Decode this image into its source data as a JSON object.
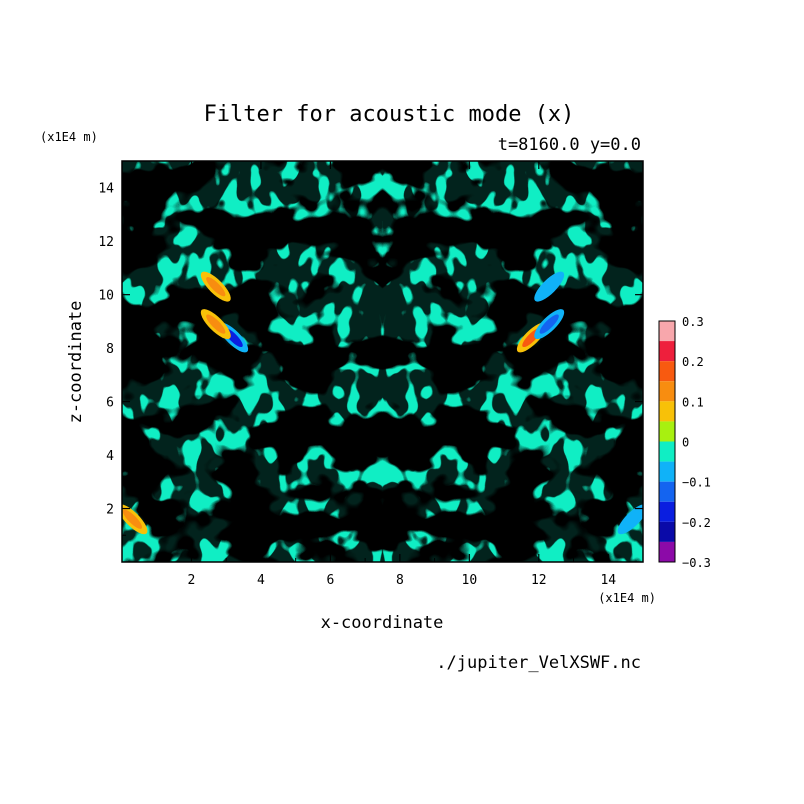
{
  "chart_data": {
    "type": "heatmap",
    "title": "Filter for acoustic mode (x)",
    "subtitle": "t=8160.0 y=0.0",
    "xlabel": "x-coordinate",
    "ylabel": "z-coordinate",
    "x_unit": "(x1E4 m)",
    "y_unit": "(x1E4 m)",
    "source_file": "./jupiter_VelXSWF.nc",
    "xlim": [
      0,
      15
    ],
    "ylim": [
      0,
      15
    ],
    "x_ticks": [
      2,
      4,
      6,
      8,
      10,
      12,
      14
    ],
    "y_ticks": [
      2,
      4,
      6,
      8,
      10,
      12,
      14
    ],
    "colorbar": {
      "range": [
        -0.3,
        0.3
      ],
      "tick_values": [
        0.3,
        0.2,
        0.1,
        0,
        -0.1,
        -0.2,
        -0.3
      ],
      "tick_labels": [
        "0.3",
        "0.2",
        "0.1",
        "0",
        "−0.1",
        "−0.2",
        "−0.3"
      ],
      "bins": [
        {
          "from": 0.25,
          "to": 0.3,
          "color": "#f8a7ac"
        },
        {
          "from": 0.2,
          "to": 0.25,
          "color": "#ee1f3c"
        },
        {
          "from": 0.15,
          "to": 0.2,
          "color": "#f85a10"
        },
        {
          "from": 0.1,
          "to": 0.15,
          "color": "#f88d10"
        },
        {
          "from": 0.05,
          "to": 0.1,
          "color": "#f8c108"
        },
        {
          "from": 0.0,
          "to": 0.05,
          "color": "#a8f010"
        },
        {
          "from": -0.05,
          "to": 0.0,
          "color": "#10eec4"
        },
        {
          "from": -0.1,
          "to": -0.05,
          "color": "#10b2f8"
        },
        {
          "from": -0.15,
          "to": -0.1,
          "color": "#1464f0"
        },
        {
          "from": -0.2,
          "to": -0.15,
          "color": "#0a1ee0"
        },
        {
          "from": -0.25,
          "to": -0.2,
          "color": "#0a0aa8"
        },
        {
          "from": -0.3,
          "to": -0.25,
          "color": "#8c0aa8"
        }
      ]
    },
    "dominant_levels": [
      -0.05,
      0.05
    ],
    "symmetry": "mirror about x=7.5",
    "features": [
      {
        "x": 3.2,
        "z": 8.4,
        "value": -0.16,
        "note": "blue streak"
      },
      {
        "x": 11.8,
        "z": 8.4,
        "value": 0.16,
        "note": "orange streak"
      },
      {
        "x": 2.7,
        "z": 8.9,
        "value": 0.12
      },
      {
        "x": 12.3,
        "z": 8.9,
        "value": -0.12
      },
      {
        "x": 2.7,
        "z": 10.3,
        "value": 0.1
      },
      {
        "x": 12.3,
        "z": 10.3,
        "value": -0.1
      },
      {
        "x": 0.3,
        "z": 1.6,
        "value": 0.1
      },
      {
        "x": 14.7,
        "z": 1.6,
        "value": -0.1
      }
    ]
  }
}
